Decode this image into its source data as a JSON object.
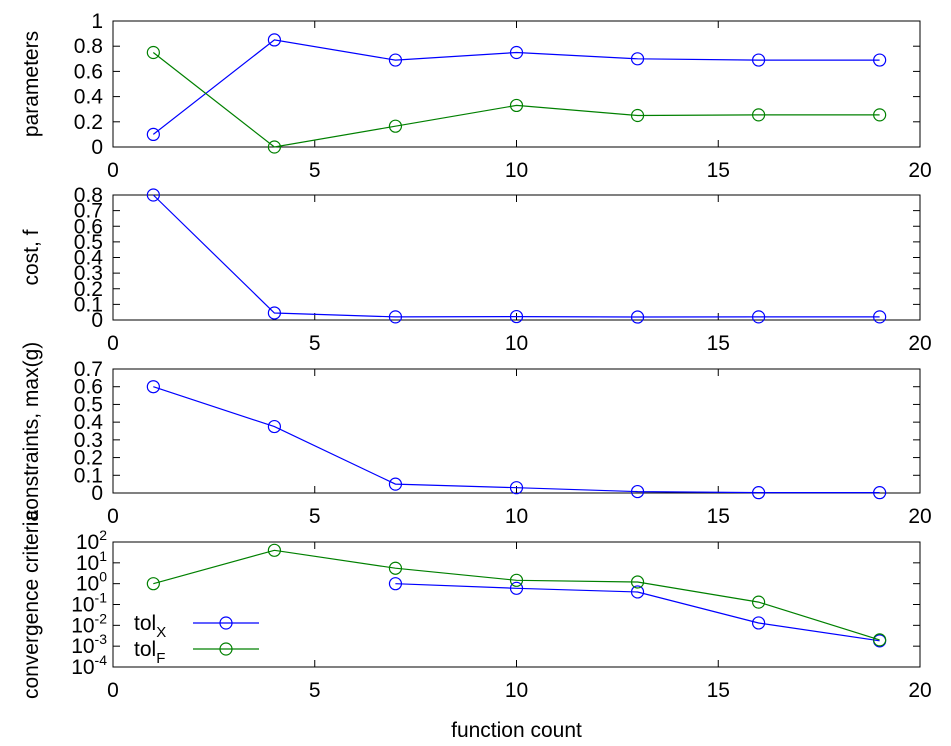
{
  "figure": {
    "xlabel": "function count",
    "legend_placement": "lower-left of bottom panel"
  },
  "chart_data": [
    {
      "type": "line",
      "ylabel": "parameters",
      "xlim": [
        0,
        20
      ],
      "ylim": [
        0,
        1
      ],
      "xticks": [
        0,
        5,
        10,
        15,
        20
      ],
      "yticks": [
        0,
        0.2,
        0.4,
        0.6,
        0.8,
        1
      ],
      "ytick_labels": [
        "0",
        "0.2",
        "0.4",
        "0.6",
        "0.8",
        "1"
      ],
      "yscale": "linear",
      "grid": false,
      "series": [
        {
          "color": "#0000ff",
          "x": [
            1,
            4,
            7,
            10,
            13,
            16,
            19
          ],
          "y": [
            0.1,
            0.85,
            0.69,
            0.75,
            0.7,
            0.69,
            0.69
          ]
        },
        {
          "color": "#008000",
          "x": [
            1,
            4,
            7,
            10,
            13,
            16,
            19
          ],
          "y": [
            0.75,
            0.0,
            0.165,
            0.33,
            0.25,
            0.255,
            0.255
          ]
        }
      ]
    },
    {
      "type": "line",
      "ylabel": "cost, f",
      "xlim": [
        0,
        20
      ],
      "ylim": [
        0,
        0.8
      ],
      "xticks": [
        0,
        5,
        10,
        15,
        20
      ],
      "yticks": [
        0,
        0.1,
        0.2,
        0.3,
        0.4,
        0.5,
        0.6,
        0.7,
        0.8
      ],
      "ytick_labels": [
        "0",
        "0.1",
        "0.2",
        "0.3",
        "0.4",
        "0.5",
        "0.6",
        "0.7",
        "0.8"
      ],
      "yscale": "linear",
      "grid": false,
      "series": [
        {
          "color": "#0000ff",
          "x": [
            1,
            4,
            7,
            10,
            13,
            16,
            19
          ],
          "y": [
            0.8,
            0.045,
            0.02,
            0.022,
            0.019,
            0.02,
            0.02
          ]
        }
      ]
    },
    {
      "type": "line",
      "ylabel": "constraints, max(g)",
      "xlim": [
        0,
        20
      ],
      "ylim": [
        0,
        0.7
      ],
      "xticks": [
        0,
        5,
        10,
        15,
        20
      ],
      "yticks": [
        0,
        0.1,
        0.2,
        0.3,
        0.4,
        0.5,
        0.6,
        0.7
      ],
      "ytick_labels": [
        "0",
        "0.1",
        "0.2",
        "0.3",
        "0.4",
        "0.5",
        "0.6",
        "0.7"
      ],
      "yscale": "linear",
      "grid": false,
      "series": [
        {
          "color": "#0000ff",
          "x": [
            1,
            4,
            7,
            10,
            13,
            16,
            19
          ],
          "y": [
            0.6,
            0.375,
            0.05,
            0.03,
            0.008,
            0.002,
            0.002
          ]
        }
      ]
    },
    {
      "type": "line",
      "ylabel": "convergence criteria",
      "xlim": [
        0,
        20
      ],
      "ylim": [
        0.0001,
        100
      ],
      "xticks": [
        0,
        5,
        10,
        15,
        20
      ],
      "yticks": [
        0.0001,
        0.001,
        0.01,
        0.1,
        1,
        10,
        100
      ],
      "ytick_exponents": [
        "-4",
        "-3",
        "-2",
        "-1",
        "0",
        "1",
        "2"
      ],
      "ytick_base": "10",
      "yscale": "log",
      "grid": false,
      "series": [
        {
          "name": "tol_X",
          "label_main": "tol",
          "label_sub": "X",
          "color": "#0000ff",
          "x": [
            7,
            10,
            13,
            16,
            19
          ],
          "y": [
            1.0,
            0.6,
            0.4,
            0.013,
            0.0018
          ]
        },
        {
          "name": "tol_F",
          "label_main": "tol",
          "label_sub": "F",
          "color": "#008000",
          "x": [
            1,
            4,
            7,
            10,
            13,
            16,
            19
          ],
          "y": [
            1.0,
            40,
            5.5,
            1.45,
            1.2,
            0.13,
            0.002
          ]
        }
      ]
    }
  ]
}
